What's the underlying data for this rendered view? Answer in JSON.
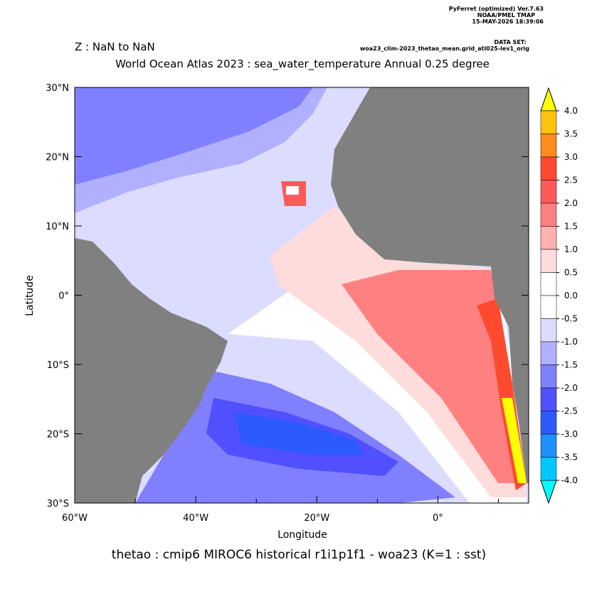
{
  "header": {
    "software": "PyFerret (optimized) Ver.7.63",
    "org": "NOAA/PMEL TMAP",
    "date": "15-MAY-2026 18:39:06",
    "dataset_label": "DATA SET:",
    "dataset": "woa23_clim-2023_thetao_mean.grid_atl025-lev1_orig"
  },
  "chart_data": {
    "type": "map",
    "subtitle": "Z : NaN to NaN",
    "title": "World Ocean Atlas 2023 : sea_water_temperature Annual  0.25 degree",
    "x_label": "Longitude",
    "y_label": "Latitude",
    "caption": "thetao : cmip6 MIROC6 historical r1i1p1f1 - woa23  (K=1 : sst)",
    "xlim": [
      -60,
      15
    ],
    "ylim": [
      -30,
      30
    ],
    "xticks": [
      {
        "value": -60,
        "label": "60°W"
      },
      {
        "value": -40,
        "label": "40°W"
      },
      {
        "value": -20,
        "label": "20°W"
      },
      {
        "value": 0,
        "label": "0°"
      }
    ],
    "xminor_ticks": [
      -50,
      -30,
      -10,
      10
    ],
    "yticks": [
      {
        "value": 30,
        "label": "30°N"
      },
      {
        "value": 20,
        "label": "20°N"
      },
      {
        "value": 10,
        "label": "10°N"
      },
      {
        "value": 0,
        "label": "0°"
      },
      {
        "value": -10,
        "label": "10°S"
      },
      {
        "value": -20,
        "label": "20°S"
      },
      {
        "value": -30,
        "label": "30°S"
      }
    ],
    "colorbar": {
      "levels": [
        {
          "value": 4,
          "label": "4.0"
        },
        {
          "value": 3.5,
          "label": "3.5"
        },
        {
          "value": 3,
          "label": "3.0"
        },
        {
          "value": 2.5,
          "label": "2.5"
        },
        {
          "value": 2,
          "label": "2.0"
        },
        {
          "value": 1.5,
          "label": "1.5"
        },
        {
          "value": 1,
          "label": "1.0"
        },
        {
          "value": 0.5,
          "label": "0.5"
        },
        {
          "value": 0,
          "label": "0.0"
        },
        {
          "value": -0.5,
          "label": "-0.5"
        },
        {
          "value": -1,
          "label": "-1.0"
        },
        {
          "value": -1.5,
          "label": "-1.5"
        },
        {
          "value": -2,
          "label": "-2.0"
        },
        {
          "value": -2.5,
          "label": "-2.5"
        },
        {
          "value": -3,
          "label": "-3.0"
        },
        {
          "value": -3.5,
          "label": "-3.5"
        },
        {
          "value": -4,
          "label": "-4.0"
        }
      ],
      "colors": [
        "#ffc20e",
        "#ff8c1e",
        "#ff4a30",
        "#ff5a5a",
        "#ff8080",
        "#ffb0b0",
        "#ffdcdc",
        "#ffffff",
        "#ffffff",
        "#dcdcff",
        "#b0b0ff",
        "#8080ff",
        "#5050ff",
        "#2c5aff",
        "#1e90ff",
        "#00c8ff"
      ],
      "over_color": "#ffff00",
      "under_color": "#00ffff"
    }
  }
}
